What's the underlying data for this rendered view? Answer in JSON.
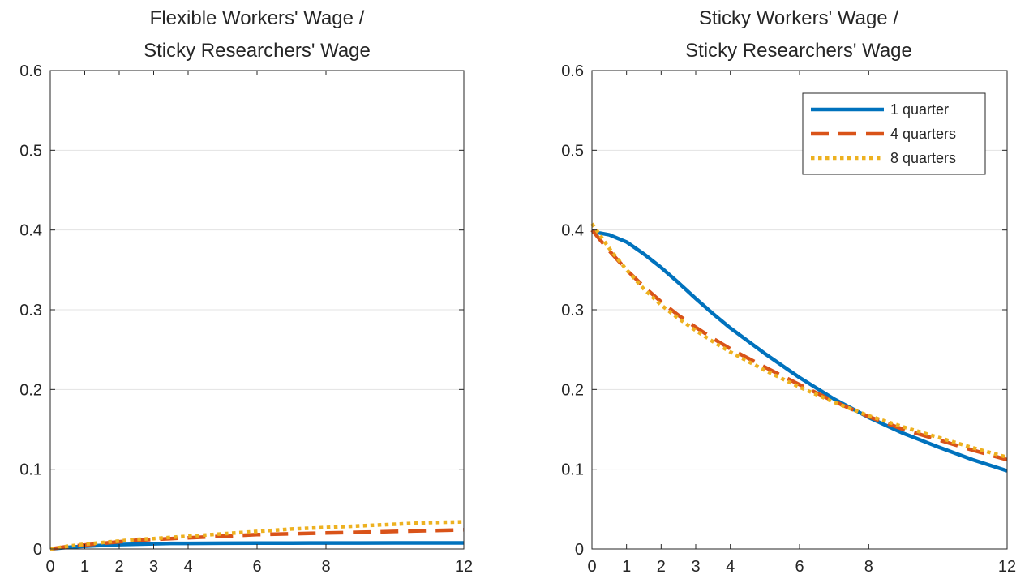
{
  "chart_data": [
    {
      "type": "line",
      "title_lines": [
        "Flexible Workers' Wage /",
        "Sticky Researchers' Wage"
      ],
      "xlabel": "",
      "ylabel": "",
      "xlim": [
        0,
        12
      ],
      "ylim": [
        0,
        0.6
      ],
      "x_ticks": [
        0,
        1,
        2,
        3,
        4,
        6,
        8,
        12
      ],
      "y_ticks": [
        0,
        0.1,
        0.2,
        0.3,
        0.4,
        0.5,
        0.6
      ],
      "grid": "horizontal",
      "legend": null,
      "x": [
        0,
        0.5,
        1,
        1.5,
        2,
        2.5,
        3,
        3.5,
        4,
        5,
        6,
        7,
        8,
        9,
        10,
        11,
        12
      ],
      "series": [
        {
          "name": "1 quarter",
          "color": "#0072BD",
          "dash": "solid",
          "values": [
            0,
            0.002,
            0.0035,
            0.0045,
            0.0055,
            0.006,
            0.0065,
            0.007,
            0.007,
            0.0072,
            0.0073,
            0.0074,
            0.0075,
            0.0075,
            0.0076,
            0.0076,
            0.0076
          ]
        },
        {
          "name": "4 quarters",
          "color": "#D95319",
          "dash": "dashed",
          "values": [
            0,
            0.003,
            0.005,
            0.007,
            0.009,
            0.011,
            0.012,
            0.013,
            0.014,
            0.016,
            0.018,
            0.019,
            0.02,
            0.021,
            0.022,
            0.023,
            0.024
          ]
        },
        {
          "name": "8 quarters",
          "color": "#EDB120",
          "dash": "dotted",
          "values": [
            0,
            0.0035,
            0.006,
            0.008,
            0.01,
            0.012,
            0.013,
            0.0145,
            0.016,
            0.019,
            0.022,
            0.025,
            0.027,
            0.029,
            0.031,
            0.033,
            0.034
          ]
        }
      ]
    },
    {
      "type": "line",
      "title_lines": [
        "Sticky Workers' Wage /",
        "Sticky Researchers' Wage"
      ],
      "xlabel": "",
      "ylabel": "",
      "xlim": [
        0,
        12
      ],
      "ylim": [
        0,
        0.6
      ],
      "x_ticks": [
        0,
        1,
        2,
        3,
        4,
        6,
        8,
        12
      ],
      "y_ticks": [
        0,
        0.1,
        0.2,
        0.3,
        0.4,
        0.5,
        0.6
      ],
      "grid": "horizontal",
      "legend": "top-right",
      "x": [
        0,
        0.5,
        1,
        1.5,
        2,
        2.5,
        3,
        3.5,
        4,
        5,
        6,
        7,
        8,
        9,
        10,
        11,
        12
      ],
      "series": [
        {
          "name": "1 quarter",
          "color": "#0072BD",
          "dash": "solid",
          "values": [
            0.398,
            0.394,
            0.385,
            0.37,
            0.353,
            0.334,
            0.314,
            0.295,
            0.277,
            0.245,
            0.215,
            0.188,
            0.165,
            0.145,
            0.128,
            0.112,
            0.098
          ]
        },
        {
          "name": "4 quarters",
          "color": "#D95319",
          "dash": "dashed",
          "values": [
            0.4,
            0.374,
            0.35,
            0.329,
            0.31,
            0.293,
            0.278,
            0.264,
            0.251,
            0.228,
            0.206,
            0.185,
            0.166,
            0.15,
            0.137,
            0.124,
            0.112
          ]
        },
        {
          "name": "8 quarters",
          "color": "#EDB120",
          "dash": "dotted",
          "values": [
            0.408,
            0.377,
            0.35,
            0.326,
            0.306,
            0.289,
            0.274,
            0.26,
            0.247,
            0.224,
            0.203,
            0.184,
            0.167,
            0.153,
            0.14,
            0.127,
            0.115
          ]
        }
      ]
    }
  ]
}
